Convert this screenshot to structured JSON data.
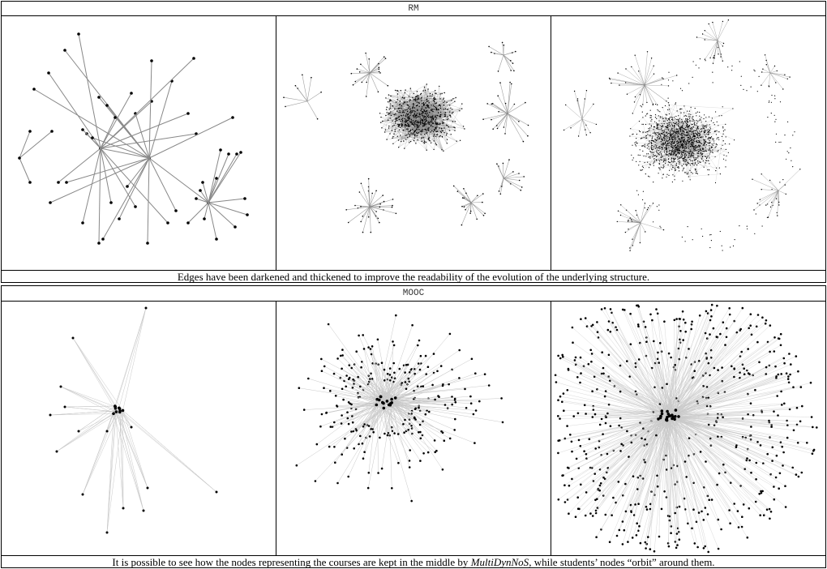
{
  "panels": [
    {
      "title": "RM",
      "caption": "Edges have been darkened and thickened to improve the readability of the evolution of the underlying structure."
    },
    {
      "title": "MOOC",
      "caption_before": "It is possible to see how the nodes representing the courses are kept in the middle by ",
      "caption_emph": "MultiDynNoS",
      "caption_after": ", while students’ nodes “orbit” around them."
    }
  ],
  "colors": {
    "border": "#000000",
    "node": "#000000",
    "edge": "#888888",
    "edge_light": "#c8c8c8"
  }
}
